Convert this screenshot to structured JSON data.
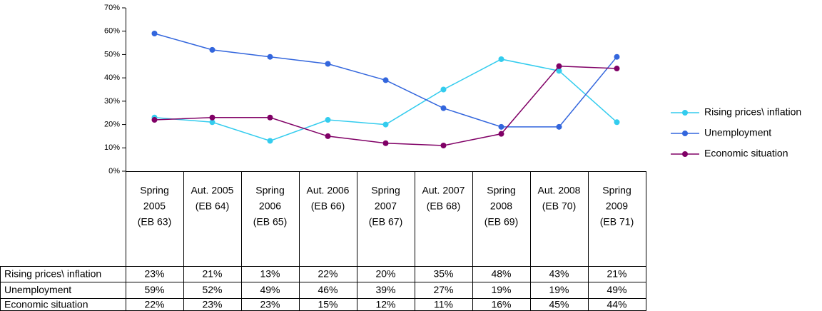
{
  "chart_data": {
    "type": "line",
    "categories": [
      [
        "Spring",
        "2005",
        "(EB 63)"
      ],
      [
        "Aut. 2005",
        "(EB 64)"
      ],
      [
        "Spring",
        "2006",
        "(EB 65)"
      ],
      [
        "Aut. 2006",
        "(EB 66)"
      ],
      [
        "Spring",
        "2007",
        "(EB 67)"
      ],
      [
        "Aut. 2007",
        "(EB 68)"
      ],
      [
        "Spring",
        "2008",
        "(EB 69)"
      ],
      [
        "Aut. 2008",
        "(EB 70)"
      ],
      [
        "Spring",
        "2009",
        "(EB 71)"
      ]
    ],
    "series": [
      {
        "name": "Rising prices\\ inflation",
        "color": "#33ccee",
        "values": [
          23,
          21,
          13,
          22,
          20,
          35,
          48,
          43,
          21
        ],
        "value_labels": [
          "23%",
          "21%",
          "13%",
          "22%",
          "20%",
          "35%",
          "48%",
          "43%",
          "21%"
        ]
      },
      {
        "name": "Unemployment",
        "color": "#3366dd",
        "values": [
          59,
          52,
          49,
          46,
          39,
          27,
          19,
          19,
          49
        ],
        "value_labels": [
          "59%",
          "52%",
          "49%",
          "46%",
          "39%",
          "27%",
          "19%",
          "19%",
          "49%"
        ]
      },
      {
        "name": "Economic situation",
        "color": "#800066",
        "values": [
          22,
          23,
          23,
          15,
          12,
          11,
          16,
          45,
          44
        ],
        "value_labels": [
          "22%",
          "23%",
          "23%",
          "15%",
          "12%",
          "11%",
          "16%",
          "45%",
          "44%"
        ]
      }
    ],
    "ylim": [
      0,
      70
    ],
    "yticks": [
      {
        "value": 0,
        "label": "0%"
      },
      {
        "value": 10,
        "label": "10%"
      },
      {
        "value": 20,
        "label": "20%"
      },
      {
        "value": 30,
        "label": "30%"
      },
      {
        "value": 40,
        "label": "40%"
      },
      {
        "value": 50,
        "label": "50%"
      },
      {
        "value": 60,
        "label": "60%"
      },
      {
        "value": 70,
        "label": "70%"
      }
    ],
    "legend": "right"
  }
}
